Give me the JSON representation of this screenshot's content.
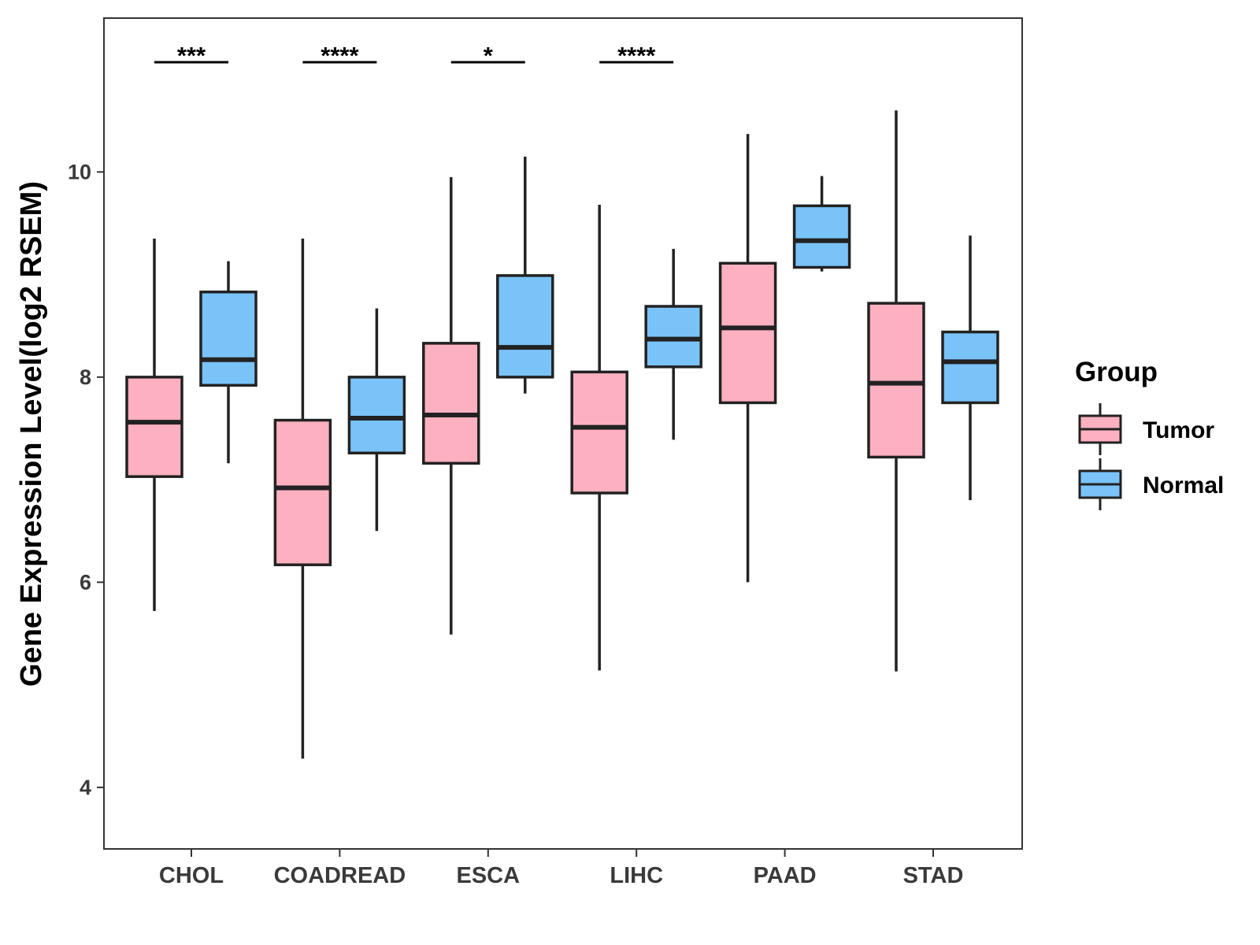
{
  "chart_data": {
    "type": "boxplot",
    "title": "",
    "xlabel": "",
    "ylabel": "Gene Expression Level(log2 RSEM)",
    "ylim": [
      3.4,
      11.5
    ],
    "yticks": [
      4,
      6,
      8,
      10
    ],
    "categories": [
      "CHOL",
      "COADREAD",
      "ESCA",
      "LIHC",
      "PAAD",
      "STAD"
    ],
    "legend": {
      "title": "Group",
      "position": "right"
    },
    "series": [
      {
        "name": "Tumor",
        "color": "#FDB0C0",
        "boxes": [
          {
            "category": "CHOL",
            "min": 5.72,
            "q1": 7.03,
            "median": 7.56,
            "q3": 8.0,
            "max": 9.35
          },
          {
            "category": "COADREAD",
            "min": 4.28,
            "q1": 6.17,
            "median": 6.92,
            "q3": 7.58,
            "max": 9.35
          },
          {
            "category": "ESCA",
            "min": 5.49,
            "q1": 7.16,
            "median": 7.63,
            "q3": 8.33,
            "max": 9.95
          },
          {
            "category": "LIHC",
            "min": 5.14,
            "q1": 6.87,
            "median": 7.51,
            "q3": 8.05,
            "max": 9.68
          },
          {
            "category": "PAAD",
            "min": 6.0,
            "q1": 7.75,
            "median": 8.48,
            "q3": 9.11,
            "max": 10.37
          },
          {
            "category": "STAD",
            "min": 5.13,
            "q1": 7.22,
            "median": 7.94,
            "q3": 8.72,
            "max": 10.6
          }
        ]
      },
      {
        "name": "Normal",
        "color": "#7AC3F9",
        "boxes": [
          {
            "category": "CHOL",
            "min": 7.16,
            "q1": 7.92,
            "median": 8.17,
            "q3": 8.83,
            "max": 9.13
          },
          {
            "category": "COADREAD",
            "min": 6.5,
            "q1": 7.26,
            "median": 7.6,
            "q3": 8.0,
            "max": 8.67
          },
          {
            "category": "ESCA",
            "min": 7.84,
            "q1": 8.0,
            "median": 8.29,
            "q3": 8.99,
            "max": 10.15
          },
          {
            "category": "LIHC",
            "min": 7.39,
            "q1": 8.1,
            "median": 8.37,
            "q3": 8.69,
            "max": 9.25
          },
          {
            "category": "PAAD",
            "min": 9.03,
            "q1": 9.07,
            "median": 9.33,
            "q3": 9.67,
            "max": 9.96
          },
          {
            "category": "STAD",
            "min": 6.8,
            "q1": 7.75,
            "median": 8.15,
            "q3": 8.44,
            "max": 9.38
          }
        ]
      }
    ],
    "significance": [
      {
        "category": "CHOL",
        "label": "***",
        "y": 11.07
      },
      {
        "category": "COADREAD",
        "label": "****",
        "y": 11.07
      },
      {
        "category": "ESCA",
        "label": "*",
        "y": 11.07
      },
      {
        "category": "LIHC",
        "label": "****",
        "y": 11.07
      }
    ]
  }
}
